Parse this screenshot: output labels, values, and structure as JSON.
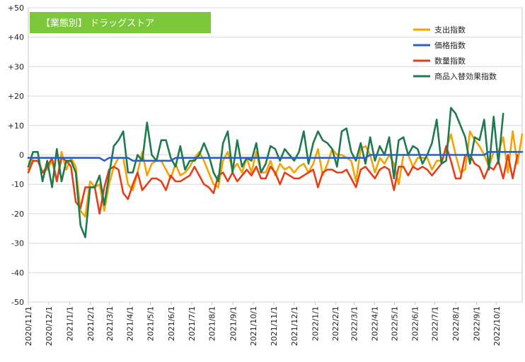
{
  "chart_data": {
    "type": "line",
    "title": "【業態別】 ドラッグストア",
    "xlabel": "",
    "ylabel": "",
    "ylim": [
      -50,
      50
    ],
    "y_ticks": [
      "+50",
      "+40",
      "+30",
      "+20",
      "+10",
      "0",
      "-10",
      "-20",
      "-30",
      "-40",
      "-50"
    ],
    "y_tick_values": [
      50,
      40,
      30,
      20,
      10,
      0,
      -10,
      -20,
      -30,
      -40,
      -50
    ],
    "x_ticks": [
      "2020/11/1",
      "2020/12/1",
      "2021/1/1",
      "2021/2/1",
      "2021/3/1",
      "2021/4/1",
      "2021/5/1",
      "2021/6/1",
      "2021/7/1",
      "2021/8/1",
      "2021/9/1",
      "2021/10/1",
      "2021/11/1",
      "2021/12/1",
      "2022/1/1",
      "2022/2/1",
      "2022/3/1",
      "2022/4/1",
      "2022/5/1",
      "2022/6/1",
      "2022/7/1",
      "2022/8/1",
      "2022/9/1",
      "2022/10/1"
    ],
    "x_tick_weeks": [
      0,
      4.3,
      8.7,
      13.1,
      17.1,
      21.4,
      25.7,
      30.1,
      34.4,
      38.7,
      43.1,
      47.4,
      51.7,
      56.0,
      60.4,
      64.7,
      68.6,
      72.9,
      77.1,
      81.4,
      85.6,
      90.0,
      94.4,
      98.6
    ],
    "grid": true,
    "legend_position": "top-right",
    "series": [
      {
        "name": "支出指数",
        "color": "#f5a300",
        "values": [
          -5,
          -1,
          -1,
          -6,
          -5,
          -2,
          -9,
          1,
          -5,
          -1,
          -4,
          -19,
          -21,
          -9,
          -11,
          -10,
          -19,
          -10,
          -4,
          -1,
          -1,
          -10,
          -12,
          -6,
          1,
          -7,
          -3,
          -2,
          -2,
          -5,
          -8,
          -3,
          -7,
          -6,
          -4,
          -1,
          1,
          -2,
          -6,
          -10,
          -11,
          -2,
          1,
          -5,
          -3,
          -6,
          -1,
          -6,
          1,
          -6,
          -6,
          -2,
          -7,
          -3,
          -5,
          -4,
          -6,
          -4,
          -3,
          -6,
          -3,
          2,
          -7,
          -3,
          2,
          0,
          0,
          -1,
          -2,
          -9,
          2,
          3,
          0,
          -6,
          -1,
          -3,
          0,
          -3,
          -10,
          0,
          0,
          -4,
          -1,
          -1,
          -1,
          -5,
          -2,
          -2,
          2,
          7,
          0,
          -6,
          -5,
          8,
          5,
          3,
          0,
          -4,
          1,
          1,
          6,
          -6,
          8,
          -3,
          7
        ],
        "visible": true
      },
      {
        "name": "価格指数",
        "color": "#2e5fc0",
        "values": [
          -1,
          -1,
          -1,
          -1,
          -1,
          -1,
          -1,
          -1,
          -1,
          -1,
          -1,
          -1,
          -1,
          -1,
          -1,
          -1,
          -2,
          -1,
          -1,
          -1,
          -1,
          -1,
          -2,
          -2,
          -2,
          -2,
          -2,
          -2,
          -2,
          -2,
          -2,
          -1,
          -1,
          -1,
          -1,
          -1,
          -1,
          -1,
          -1,
          -1,
          -1,
          -1,
          -1,
          -1,
          -1,
          -1,
          -1,
          -1,
          -1,
          -1,
          -1,
          -1,
          -1,
          -1,
          -1,
          -1,
          -1,
          -1,
          -1,
          -1,
          -1,
          -1,
          -1,
          -1,
          -1,
          -1,
          -1,
          -1,
          -1,
          -1,
          -1,
          -1,
          0,
          0,
          0,
          0,
          0,
          0,
          0,
          0,
          0,
          0,
          0,
          0,
          0,
          0,
          0,
          0,
          0,
          0,
          0,
          0,
          0,
          0,
          0,
          0,
          0,
          1,
          1,
          1,
          1,
          1,
          1,
          1,
          1
        ],
        "visible": true
      },
      {
        "name": "数量指数",
        "color": "#e53f1a",
        "values": [
          -6,
          -2,
          -2,
          -6,
          -4,
          -1,
          -9,
          -1,
          -2,
          -4,
          -16,
          -18,
          -11,
          -11,
          -11,
          -20,
          -11,
          -5,
          -4,
          -5,
          -13,
          -15,
          -10,
          -6,
          -12,
          -10,
          -8,
          -8,
          -9,
          -12,
          -7,
          -9,
          -9,
          -8,
          -7,
          -4,
          -7,
          -10,
          -11,
          -13,
          -7,
          -6,
          -9,
          -6,
          -9,
          -7,
          -5,
          -7,
          -4,
          -8,
          -8,
          -4,
          -6,
          -10,
          -6,
          -7,
          -8,
          -8,
          -7,
          -6,
          -5,
          -11,
          -6,
          -5,
          -5,
          -6,
          -6,
          -5,
          -8,
          -11,
          -5,
          -4,
          -6,
          -8,
          -5,
          -4,
          -5,
          -12,
          -4,
          -4,
          -7,
          -4,
          -5,
          -4,
          -5,
          -7,
          -5,
          -3,
          3,
          -2,
          -8,
          -8,
          0,
          0,
          -3,
          -4,
          -8,
          -4,
          -5,
          -2,
          -8,
          0,
          -8,
          0
        ],
        "visible": true
      },
      {
        "name": "商品入替効果指数",
        "color": "#1f7a4d",
        "values": [
          -4,
          1,
          1,
          -9,
          -2,
          -11,
          2,
          -9,
          -2,
          -2,
          -6,
          -24,
          -28,
          -11,
          -11,
          -7,
          -17,
          -7,
          3,
          5,
          8,
          -6,
          -6,
          0,
          -2,
          11,
          0,
          -2,
          5,
          5,
          -1,
          -4,
          3,
          -5,
          -2,
          -2,
          0,
          4,
          0,
          -6,
          -9,
          4,
          8,
          -6,
          5,
          -4,
          -1,
          -2,
          4,
          -6,
          -3,
          3,
          2,
          -2,
          2,
          0,
          -2,
          1,
          8,
          -3,
          4,
          8,
          5,
          4,
          2,
          -4,
          8,
          9,
          1,
          -2,
          4,
          -3,
          6,
          -2,
          3,
          0,
          6,
          -8,
          5,
          6,
          0,
          3,
          2,
          -3,
          0,
          4,
          12,
          -3,
          -2,
          16,
          14,
          10,
          6,
          -3,
          6,
          5,
          12,
          -5,
          13,
          -3,
          14
        ],
        "visible": true
      }
    ]
  }
}
